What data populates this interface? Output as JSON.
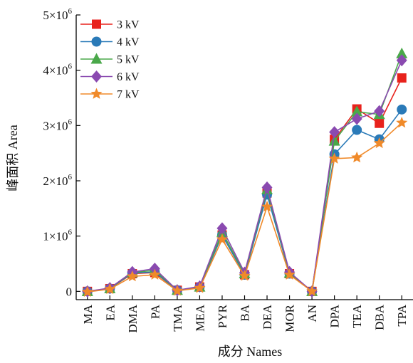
{
  "chart_data": {
    "type": "line",
    "title": "",
    "xlabel": "成分   Names",
    "ylabel": "峰面积   Area",
    "categories": [
      "MA",
      "EA",
      "DMA",
      "PA",
      "TMA",
      "MEA",
      "PYR",
      "BA",
      "DEA",
      "MOR",
      "AN",
      "DPA",
      "TEA",
      "DBA",
      "TPA"
    ],
    "ylim": [
      -150000,
      5000000
    ],
    "yticks": [
      0,
      1000000,
      2000000,
      3000000,
      4000000,
      5000000
    ],
    "ytick_labels": [
      {
        "base": "0",
        "exp": ""
      },
      {
        "base": "1×10",
        "exp": "6"
      },
      {
        "base": "2×10",
        "exp": "6"
      },
      {
        "base": "3×10",
        "exp": "6"
      },
      {
        "base": "4×10",
        "exp": "6"
      },
      {
        "base": "5×10",
        "exp": "6"
      }
    ],
    "grid": false,
    "legend_position": "top-left",
    "series": [
      {
        "name": "3 kV",
        "color": "#e8221c",
        "marker": "square",
        "values": [
          0,
          50000,
          320000,
          340000,
          20000,
          80000,
          1020000,
          300000,
          1780000,
          320000,
          0,
          2750000,
          3300000,
          3040000,
          3860000
        ]
      },
      {
        "name": "4 kV",
        "color": "#2a7ab8",
        "marker": "circle",
        "values": [
          0,
          50000,
          330000,
          350000,
          20000,
          80000,
          1020000,
          300000,
          1750000,
          320000,
          0,
          2480000,
          2920000,
          2750000,
          3290000
        ]
      },
      {
        "name": "5 kV",
        "color": "#4aa84a",
        "marker": "triangle",
        "values": [
          0,
          50000,
          340000,
          380000,
          20000,
          80000,
          1070000,
          320000,
          1840000,
          330000,
          0,
          2720000,
          3250000,
          3200000,
          4300000
        ]
      },
      {
        "name": "6 kV",
        "color": "#8a4ab0",
        "marker": "diamond",
        "values": [
          0,
          60000,
          350000,
          410000,
          20000,
          90000,
          1140000,
          340000,
          1880000,
          350000,
          0,
          2880000,
          3120000,
          3260000,
          4180000
        ]
      },
      {
        "name": "7 kV",
        "color": "#f08a2a",
        "marker": "star",
        "values": [
          -10000,
          40000,
          270000,
          300000,
          10000,
          60000,
          940000,
          280000,
          1530000,
          300000,
          0,
          2400000,
          2420000,
          2680000,
          3050000
        ]
      }
    ]
  }
}
